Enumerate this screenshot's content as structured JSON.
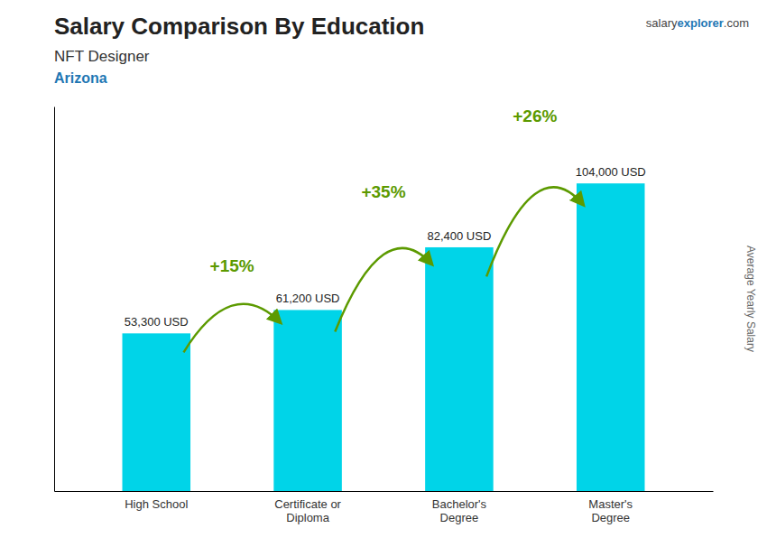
{
  "chart_data": {
    "type": "bar",
    "title": "Salary Comparison By Education",
    "subtitle": "NFT Designer",
    "location": "Arizona",
    "source": [
      "salary",
      "explorer",
      ".com"
    ],
    "ylabel": "Average Yearly Salary",
    "categories": [
      "High School",
      "Certificate or\nDiploma",
      "Bachelor's\nDegree",
      "Master's\nDegree"
    ],
    "values": [
      53300,
      61200,
      82400,
      104000
    ],
    "value_labels": [
      "53,300 USD",
      "61,200 USD",
      "82,400 USD",
      "104,000 USD"
    ],
    "data_labels": true,
    "annotations": [
      "+15%",
      "+35%",
      "+26%"
    ],
    "color": "#00d4e8",
    "ylim": [
      0,
      130000
    ],
    "grid": false,
    "tick_labels": "x"
  }
}
